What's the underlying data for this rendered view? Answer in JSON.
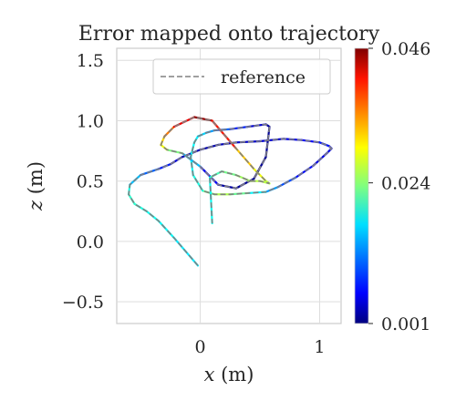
{
  "chart_data": {
    "type": "line",
    "title": "Error mapped onto trajectory",
    "xlabel": "x (m)",
    "ylabel": "z (m)",
    "xlim": [
      -0.7,
      1.18
    ],
    "ylim": [
      -0.68,
      1.6
    ],
    "xticks": [
      {
        "value": 0,
        "label": "0"
      },
      {
        "value": 1,
        "label": "1"
      }
    ],
    "yticks": [
      {
        "value": -0.5,
        "label": "−0.5"
      },
      {
        "value": 0.0,
        "label": "0.0"
      },
      {
        "value": 0.5,
        "label": "0.5"
      },
      {
        "value": 1.0,
        "label": "1.0"
      },
      {
        "value": 1.5,
        "label": "1.5"
      }
    ],
    "grid": true,
    "legend": {
      "position": "top-right",
      "entries": [
        {
          "label": "reference",
          "style": "dashed",
          "color": "#808080"
        }
      ]
    },
    "colorbar": {
      "colormap": "jet",
      "min": 0.001,
      "max": 0.046,
      "ticks": [
        {
          "value": 0.001,
          "label": "0.001"
        },
        {
          "value": 0.024,
          "label": "0.024"
        },
        {
          "value": 0.046,
          "label": "0.046"
        }
      ]
    },
    "series": [
      {
        "name": "reference",
        "style": "dashed",
        "x": [
          -0.02,
          -0.22,
          -0.35,
          -0.45,
          -0.5,
          -0.55,
          -0.6,
          -0.59,
          -0.5,
          -0.35,
          -0.25,
          -0.15,
          0.0,
          0.15,
          0.3,
          0.5,
          0.7,
          0.85,
          1.0,
          1.08,
          1.1,
          1.06,
          0.95,
          0.8,
          0.65,
          0.55,
          0.4,
          0.25,
          0.12,
          0.02,
          -0.06,
          -0.08,
          -0.05,
          -0.02,
          0.05,
          0.12,
          0.25,
          0.4,
          0.55,
          0.58,
          0.55,
          0.45,
          0.3,
          0.15,
          0.0,
          -0.15,
          -0.28,
          -0.33,
          -0.3,
          -0.22,
          -0.05,
          0.1,
          0.3,
          0.45,
          0.55,
          0.58,
          0.5,
          0.42,
          0.3,
          0.18,
          0.08,
          0.1
        ],
        "y": [
          -0.2,
          0.03,
          0.17,
          0.25,
          0.28,
          0.31,
          0.39,
          0.47,
          0.55,
          0.6,
          0.64,
          0.7,
          0.76,
          0.8,
          0.82,
          0.83,
          0.85,
          0.84,
          0.82,
          0.79,
          0.77,
          0.73,
          0.63,
          0.53,
          0.45,
          0.41,
          0.4,
          0.39,
          0.39,
          0.42,
          0.55,
          0.7,
          0.82,
          0.87,
          0.9,
          0.92,
          0.93,
          0.95,
          0.97,
          0.95,
          0.7,
          0.52,
          0.44,
          0.47,
          0.62,
          0.73,
          0.76,
          0.8,
          0.87,
          0.95,
          1.03,
          1.0,
          0.77,
          0.6,
          0.5,
          0.48,
          0.5,
          0.5,
          0.55,
          0.58,
          0.53,
          0.15
        ]
      },
      {
        "name": "",
        "style": "solid",
        "colored_by_error": true,
        "x": [
          -0.02,
          -0.22,
          -0.35,
          -0.45,
          -0.5,
          -0.55,
          -0.6,
          -0.59,
          -0.5,
          -0.35,
          -0.25,
          -0.15,
          0.0,
          0.15,
          0.3,
          0.5,
          0.7,
          0.85,
          1.0,
          1.08,
          1.1,
          1.06,
          0.95,
          0.8,
          0.65,
          0.55,
          0.4,
          0.25,
          0.12,
          0.02,
          -0.06,
          -0.08,
          -0.05,
          -0.02,
          0.05,
          0.12,
          0.25,
          0.4,
          0.55,
          0.58,
          0.55,
          0.45,
          0.3,
          0.15,
          0.0,
          -0.15,
          -0.28,
          -0.33,
          -0.3,
          -0.22,
          -0.05,
          0.1,
          0.3,
          0.45,
          0.55,
          0.58,
          0.5,
          0.42,
          0.3,
          0.18,
          0.08,
          0.1
        ],
        "y": [
          -0.2,
          0.03,
          0.17,
          0.25,
          0.28,
          0.31,
          0.39,
          0.47,
          0.55,
          0.6,
          0.64,
          0.7,
          0.76,
          0.8,
          0.82,
          0.83,
          0.85,
          0.84,
          0.82,
          0.79,
          0.77,
          0.73,
          0.63,
          0.53,
          0.45,
          0.41,
          0.4,
          0.39,
          0.39,
          0.42,
          0.55,
          0.7,
          0.82,
          0.87,
          0.9,
          0.92,
          0.93,
          0.95,
          0.97,
          0.95,
          0.7,
          0.52,
          0.44,
          0.47,
          0.62,
          0.73,
          0.76,
          0.8,
          0.87,
          0.95,
          1.03,
          1.0,
          0.77,
          0.6,
          0.5,
          0.48,
          0.5,
          0.5,
          0.55,
          0.58,
          0.53,
          0.15
        ],
        "error": [
          0.016,
          0.018,
          0.018,
          0.019,
          0.019,
          0.02,
          0.02,
          0.018,
          0.012,
          0.01,
          0.006,
          0.004,
          0.003,
          0.003,
          0.004,
          0.004,
          0.005,
          0.006,
          0.007,
          0.008,
          0.006,
          0.005,
          0.006,
          0.008,
          0.012,
          0.015,
          0.02,
          0.025,
          0.026,
          0.02,
          0.018,
          0.018,
          0.018,
          0.017,
          0.015,
          0.012,
          0.01,
          0.006,
          0.003,
          0.002,
          0.002,
          0.002,
          0.002,
          0.003,
          0.01,
          0.02,
          0.027,
          0.03,
          0.032,
          0.038,
          0.044,
          0.046,
          0.033,
          0.03,
          0.027,
          0.026,
          0.026,
          0.026,
          0.024,
          0.022,
          0.02,
          0.017
        ]
      }
    ]
  }
}
